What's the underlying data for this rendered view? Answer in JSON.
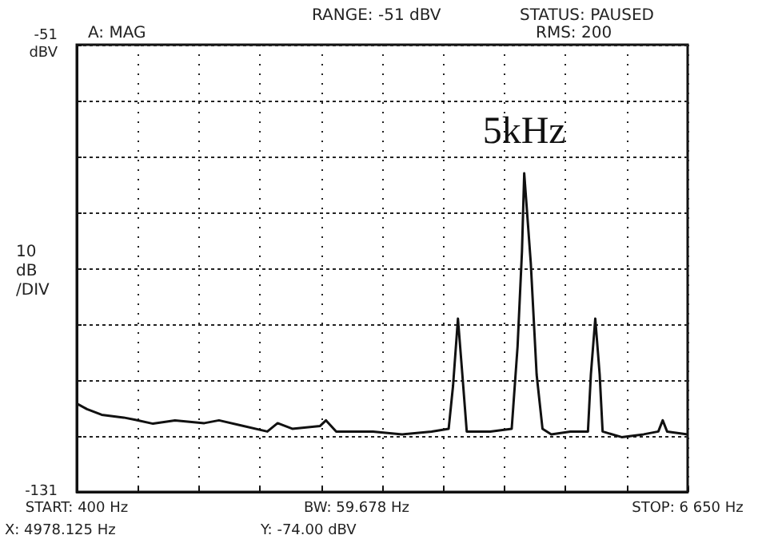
{
  "chart_data": {
    "type": "line",
    "ylabel": "10 dB /DIV",
    "xlabel": "BW: 59.678 Hz",
    "x": [
      400,
      505,
      655,
      880,
      1000,
      1180,
      1405,
      1705,
      1855,
      2080,
      2350,
      2455,
      2605,
      2890,
      2950,
      3055,
      3430,
      3730,
      4030,
      4205,
      4250,
      4300,
      4345,
      4390,
      4630,
      4850,
      4910,
      4955,
      4978,
      5045,
      5105,
      5165,
      5255,
      5450,
      5630,
      5660,
      5705,
      5750,
      5780,
      5975,
      6200,
      6350,
      6395,
      6440,
      6650
    ],
    "series": [
      {
        "color": "#111111",
        "values": [
          -115.2,
          -116.2,
          -117.2,
          -117.7,
          -118.1,
          -118.8,
          -118.2,
          -118.7,
          -118.2,
          -119.1,
          -120.2,
          -118.7,
          -119.7,
          -119.2,
          -118.2,
          -120.2,
          -120.2,
          -120.7,
          -120.2,
          -119.7,
          -112,
          -100,
          -110,
          -120.2,
          -120.2,
          -119.7,
          -105,
          -88,
          -74,
          -90,
          -110,
          -119.7,
          -120.7,
          -120.2,
          -120.2,
          -110,
          -100,
          -110,
          -120.2,
          -121.2,
          -120.7,
          -120.2,
          -118.2,
          -120.2,
          -120.7
        ]
      }
    ],
    "xlim": [
      400,
      6650
    ],
    "xticks": [
      {
        "value": 400,
        "label": "START: 400 Hz"
      },
      {
        "value": 1025,
        "label": null
      },
      {
        "value": 1650,
        "label": null
      },
      {
        "value": 2275,
        "label": null
      },
      {
        "value": 2900,
        "label": null
      },
      {
        "value": 3525,
        "label": null
      },
      {
        "value": 4150,
        "label": null
      },
      {
        "value": 4775,
        "label": null
      },
      {
        "value": 5400,
        "label": null
      },
      {
        "value": 6025,
        "label": null
      },
      {
        "value": 6650,
        "label": "STOP: 6 650 Hz"
      }
    ],
    "ylim": [
      -131,
      -51
    ],
    "yticks": [
      -131,
      {
        "value": -121,
        "label": null
      },
      {
        "value": -111,
        "label": null
      },
      {
        "value": -101,
        "label": null
      },
      {
        "value": -91,
        "label": null
      },
      {
        "value": -81,
        "label": null
      },
      {
        "value": -71,
        "label": null
      },
      {
        "value": -61,
        "label": null
      },
      {
        "value": -51,
        "label": "-51 dBV"
      }
    ],
    "grid": true,
    "marker": "none",
    "line_style": "solid",
    "annotations": [
      "RANGE: -51 dBV",
      "STATUS: PAUSED",
      "RMS: 200",
      "A: MAG",
      "X: 4978.125 Hz",
      "Y: -74.00 dBV",
      {
        "text": "5kHz",
        "x": 4978,
        "y": -74
      }
    ]
  }
}
